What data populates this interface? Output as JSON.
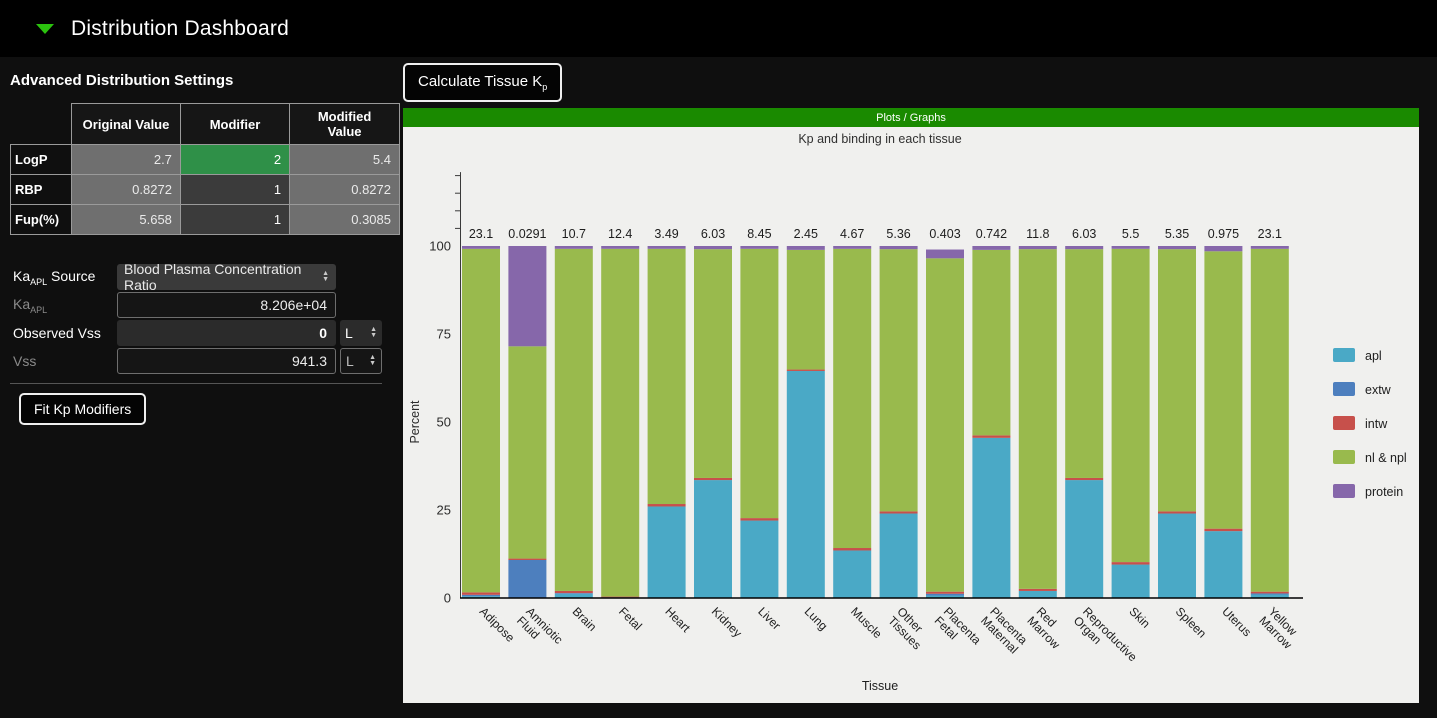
{
  "header": {
    "title": "Distribution Dashboard",
    "collapse_icon": "triangle-down-icon",
    "accent_color": "#2bc20e"
  },
  "settings_panel": {
    "title": "Advanced Distribution Settings",
    "table": {
      "columns": [
        "Original Value",
        "Modifier",
        "Modified Value"
      ],
      "rows": [
        {
          "label": "LogP",
          "original": "2.7",
          "modifier": "2",
          "modified": "5.4",
          "modifier_color": "#2f9048"
        },
        {
          "label": "RBP",
          "original": "0.8272",
          "modifier": "1",
          "modified": "0.8272",
          "modifier_color": "#3b3b3b"
        },
        {
          "label": "Fup(%)",
          "original": "5.658",
          "modifier": "1",
          "modified": "0.3085",
          "modifier_color": "#3b3b3b"
        }
      ]
    },
    "fields": {
      "ka_source": {
        "label_main": "Ka",
        "label_sub": "APL",
        "label_rest": " Source",
        "value": "Blood Plasma Concentration Ratio",
        "icon": "updown-icon"
      },
      "ka": {
        "label_main": "Ka",
        "label_sub": "APL",
        "value": "8.206e+04",
        "disabled": true
      },
      "observed_vss": {
        "label": "Observed Vss",
        "value": "0",
        "unit": "L",
        "icon": "updown-icon"
      },
      "vss": {
        "label": "Vss",
        "value": "941.3",
        "unit": "L",
        "icon": "updown-icon",
        "disabled": true
      }
    },
    "fit_button": "Fit Kp Modifiers"
  },
  "main": {
    "calculate_button": {
      "text": "Calculate Tissue K",
      "sub": "p"
    },
    "plots_bar_title": "Plots / Graphs",
    "plots_bar_color": "#1a8a00",
    "plot_background": "#f0f0ee"
  },
  "chart_data": {
    "type": "bar",
    "stacked": true,
    "title": "Kp and binding in each tissue",
    "xlabel": "Tissue",
    "ylabel": "Percent",
    "ylim": [
      0,
      121
    ],
    "yticks": [
      0,
      25,
      50,
      75,
      100
    ],
    "minor_yticks": [
      105,
      110,
      115,
      120
    ],
    "grid": false,
    "legend_position": "right",
    "categories": [
      "Adipose",
      "Amniotic Fluid",
      "Brain",
      "Fetal",
      "Heart",
      "Kidney",
      "Liver",
      "Lung",
      "Muscle",
      "Other Tissues",
      "Placenta Fetal",
      "Placenta Maternal",
      "Red Marrow",
      "Reproductive Organ",
      "Skin",
      "Spleen",
      "Uterus",
      "Yellow Marrow"
    ],
    "kp_values": [
      "23.1",
      "0.0291",
      "10.7",
      "12.4",
      "3.49",
      "6.03",
      "8.45",
      "2.45",
      "4.67",
      "5.36",
      "0.403",
      "0.742",
      "11.8",
      "6.03",
      "5.5",
      "5.35",
      "0.975",
      "23.1"
    ],
    "series": [
      {
        "name": "apl",
        "color": "#4aa9c6",
        "values": [
          0.5,
          0.0,
          1.2,
          0.1,
          26.0,
          33.5,
          22.0,
          64.5,
          13.5,
          24.0,
          0.7,
          45.5,
          2.0,
          33.5,
          9.5,
          24.0,
          19.0,
          1.0
        ]
      },
      {
        "name": "extw",
        "color": "#4d7fbe",
        "values": [
          0.4,
          10.8,
          0.2,
          0.1,
          0.0,
          0.0,
          0.0,
          0.0,
          0.0,
          0.0,
          0.5,
          0.0,
          0.0,
          0.0,
          0.0,
          0.0,
          0.0,
          0.3
        ]
      },
      {
        "name": "intw",
        "color": "#c7504b",
        "values": [
          0.7,
          0.4,
          0.6,
          0.2,
          0.7,
          0.6,
          0.7,
          0.4,
          0.7,
          0.6,
          0.6,
          0.7,
          0.6,
          0.6,
          0.7,
          0.6,
          0.7,
          0.5
        ]
      },
      {
        "name": "nl & npl",
        "color": "#99ba4d",
        "values": [
          97.6,
          60.3,
          97.2,
          98.8,
          72.5,
          65.0,
          76.5,
          34.0,
          85.0,
          74.5,
          94.7,
          52.7,
          96.5,
          65.0,
          89.0,
          74.5,
          78.8,
          97.4
        ]
      },
      {
        "name": "protein",
        "color": "#8667aa",
        "values": [
          0.8,
          28.5,
          0.8,
          0.8,
          0.8,
          0.9,
          0.8,
          1.1,
          0.8,
          0.9,
          2.5,
          1.1,
          0.9,
          0.9,
          0.8,
          0.9,
          1.5,
          0.8
        ]
      }
    ]
  }
}
